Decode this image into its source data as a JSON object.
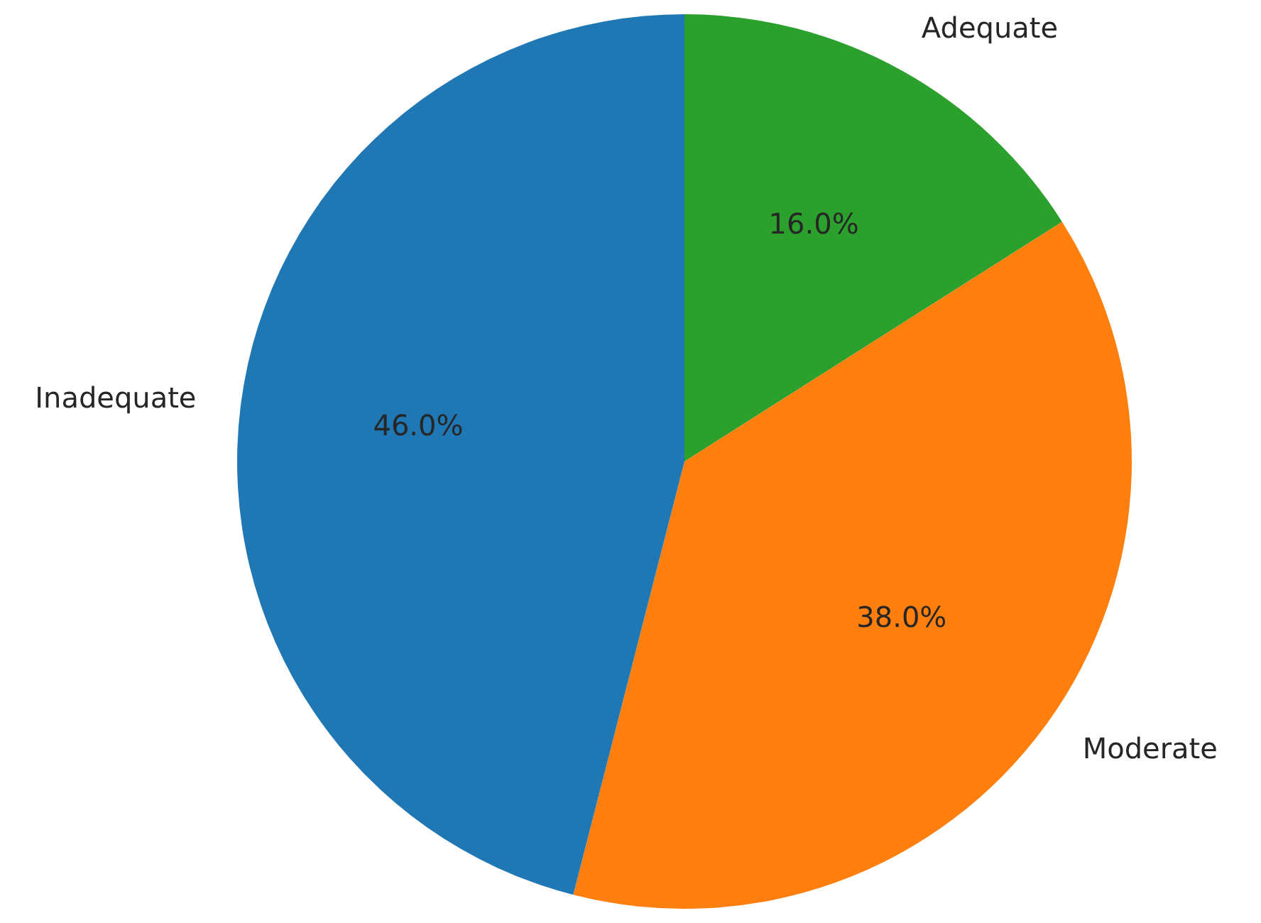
{
  "chart_data": {
    "type": "pie",
    "categories": [
      "Adequate",
      "Moderate",
      "Inadequate"
    ],
    "values": [
      16,
      38,
      46
    ],
    "value_labels": [
      "16.0%",
      "38.0%",
      "46.0%"
    ],
    "colors": [
      "#2ca02c",
      "#ff7f0e",
      "#1f77b4"
    ]
  }
}
